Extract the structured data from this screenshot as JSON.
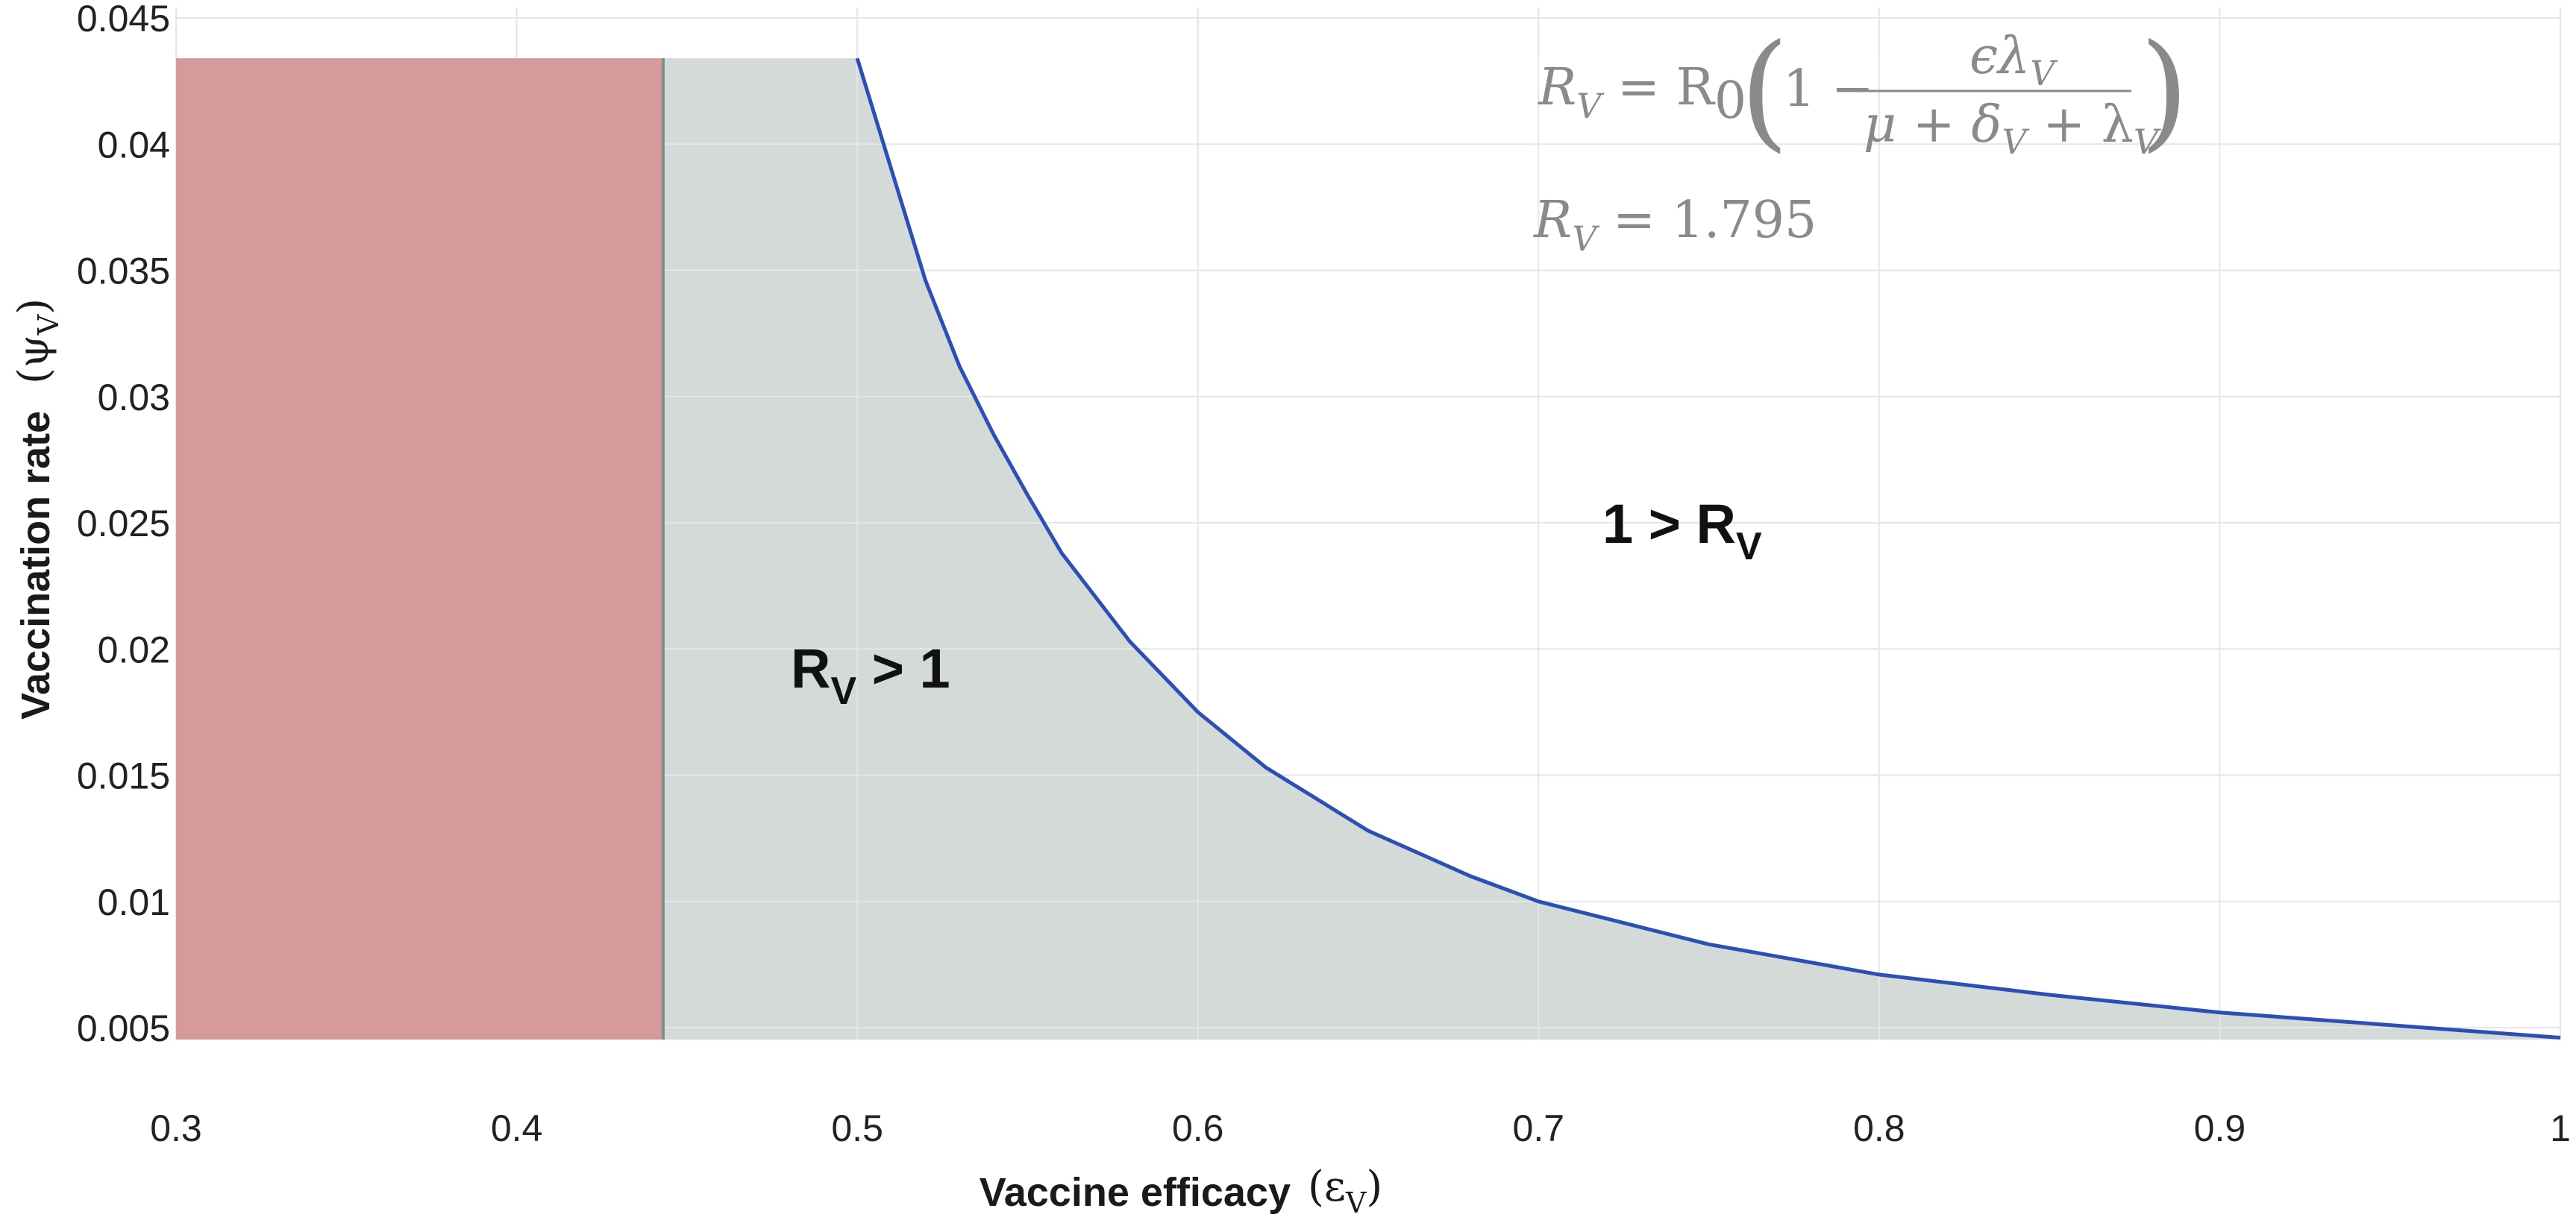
{
  "chart_data": {
    "type": "area",
    "xlabel": "Vaccine efficacy",
    "xlabel_symbol": "(ε",
    "xlabel_symbol_sub": "V",
    "xlabel_symbol_close": ")",
    "ylabel": "Vaccination rate",
    "ylabel_symbol": "(ψ",
    "ylabel_symbol_sub": "V",
    "ylabel_symbol_close": ")",
    "xlim": [
      0.3,
      1.0
    ],
    "ylim": [
      0.0045,
      0.045
    ],
    "x_ticks": [
      "0.3",
      "0.4",
      "0.5",
      "0.6",
      "0.7",
      "0.8",
      "0.9",
      "1"
    ],
    "y_ticks": [
      "0.005",
      "0.01",
      "0.015",
      "0.02",
      "0.025",
      "0.03",
      "0.035",
      "0.04",
      "0.045"
    ],
    "grid": true,
    "shaded_region_top_y": 0.0434,
    "red_region_x": [
      0.3,
      0.443
    ],
    "series": [
      {
        "x": [
          0.5,
          0.51,
          0.52,
          0.53,
          0.54,
          0.55,
          0.56,
          0.58,
          0.6,
          0.62,
          0.65,
          0.68,
          0.7,
          0.75,
          0.8,
          0.85,
          0.9,
          0.95,
          1.0
        ],
        "y": [
          0.0434,
          0.039,
          0.0346,
          0.0312,
          0.0285,
          0.0261,
          0.0238,
          0.0203,
          0.0175,
          0.0153,
          0.0128,
          0.011,
          0.01,
          0.0083,
          0.0071,
          0.0063,
          0.0056,
          0.0051,
          0.0046
        ],
        "color": "#2c4fb5"
      }
    ],
    "colors": {
      "red_region": "#d79a9a",
      "grey_region": "#d3dad8",
      "boundary_line": "#7a8f86",
      "curve": "#2c4fb5"
    },
    "annotations": {
      "region_left_main": "R",
      "region_left_sub": "V",
      "region_left_rest": " > 1",
      "region_right_main": "1 > R",
      "region_right_sub": "V",
      "formula_lhs": "R",
      "formula_lhs_sub": "V",
      "formula_eq": " = R",
      "formula_r0_sub": "0",
      "formula_one_minus": "1 −",
      "formula_numerator": "ϵλ",
      "formula_numerator_sub": "V",
      "formula_den_mu": "μ + δ",
      "formula_den_delta_sub": "V",
      "formula_den_plus": " + λ",
      "formula_den_lambda_sub": "V",
      "value_lhs": "R",
      "value_lhs_sub": "V",
      "value_rhs": " = 1.795"
    }
  }
}
